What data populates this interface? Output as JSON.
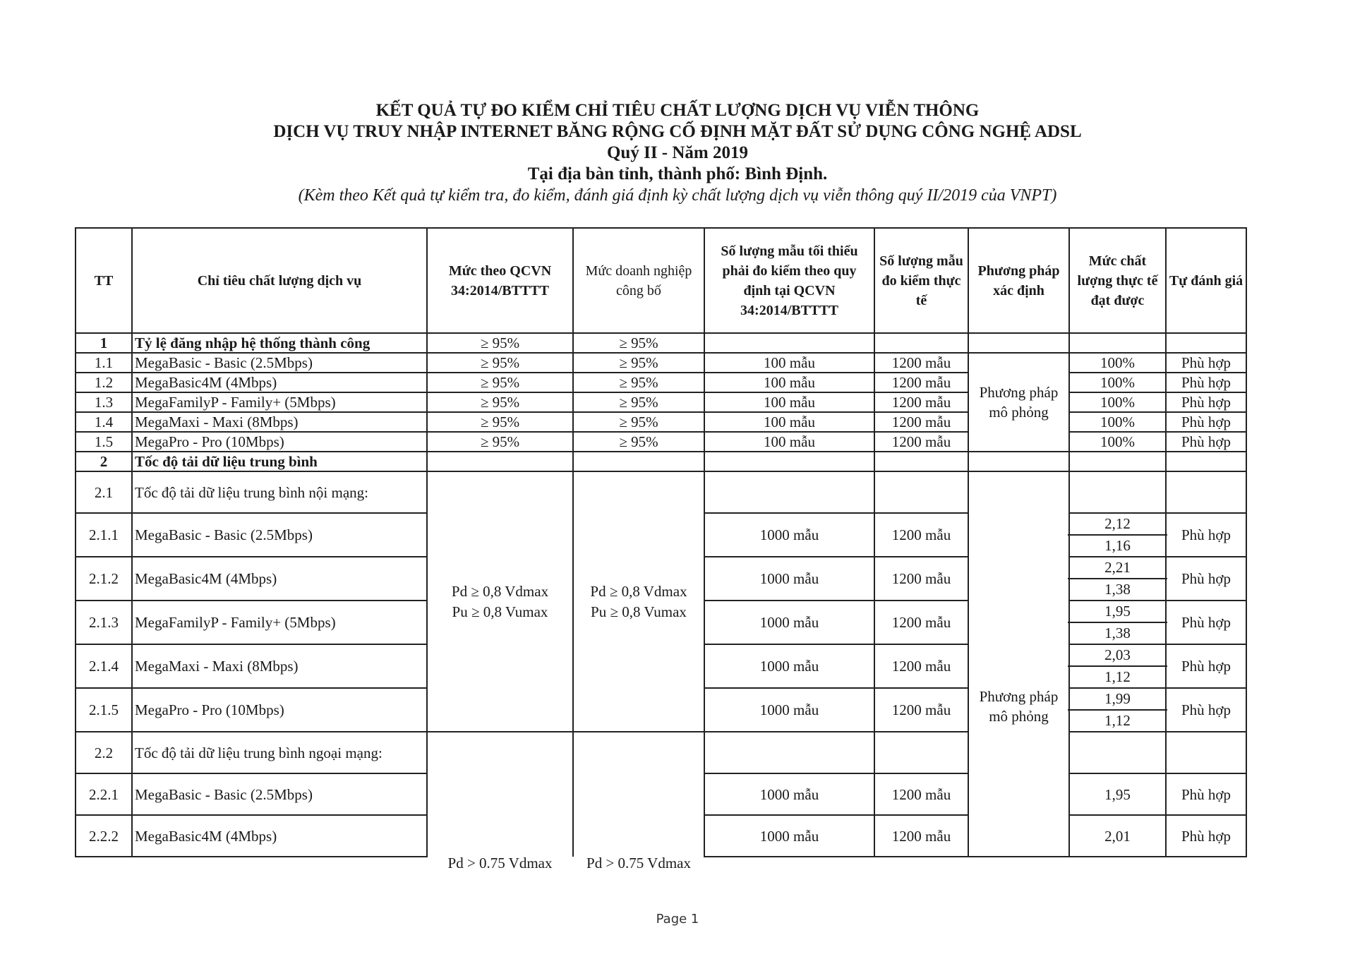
{
  "title": {
    "line1": "KẾT QUẢ TỰ ĐO KIỂM CHỈ TIÊU CHẤT LƯỢNG DỊCH VỤ VIỄN THÔNG",
    "line2": "DỊCH VỤ TRUY NHẬP INTERNET BĂNG RỘNG CỐ ĐỊNH MẶT ĐẤT SỬ DỤNG CÔNG NGHỆ ADSL",
    "period": "Quý II - Năm 2019",
    "location": "Tại địa bàn tỉnh, thành phố: Bình Định.",
    "note": "(Kèm theo Kết quả tự kiểm tra, đo kiểm, đánh giá định kỳ chất lượng dịch vụ viễn thông quý II/2019 của VNPT)"
  },
  "headers": [
    "TT",
    "Chỉ tiêu chất lượng dịch vụ",
    "Mức theo QCVN 34:2014/BTTTT",
    "Mức doanh nghiệp công bố",
    "Số lượng mẫu tối thiểu phải đo kiểm theo quy định tại QCVN 34:2014/BTTTT",
    "Số lượng mẫu đo kiểm thực tế",
    "Phương pháp xác định",
    "Mức chất lượng thực tế đạt được",
    "Tự đánh giá"
  ],
  "s1": {
    "tt": "1",
    "name": "Tỷ lệ đăng nhập hệ thống thành công",
    "qcvn": "≥ 95%",
    "dn": "≥ 95%",
    "method": "Phương pháp mô phỏng",
    "rows": [
      {
        "tt": "1.1",
        "name": "MegaBasic - Basic (2.5Mbps)",
        "qcvn": "≥ 95%",
        "dn": "≥ 95%",
        "min": "100 mẫu",
        "actual": "1200 mẫu",
        "value": "100%",
        "eval": "Phù hợp"
      },
      {
        "tt": "1.2",
        "name": "MegaBasic4M (4Mbps)",
        "qcvn": "≥ 95%",
        "dn": "≥ 95%",
        "min": "100 mẫu",
        "actual": "1200 mẫu",
        "value": "100%",
        "eval": "Phù hợp"
      },
      {
        "tt": "1.3",
        "name": "MegaFamilyP - Family+ (5Mbps)",
        "qcvn": "≥ 95%",
        "dn": "≥ 95%",
        "min": "100 mẫu",
        "actual": "1200 mẫu",
        "value": "100%",
        "eval": "Phù hợp"
      },
      {
        "tt": "1.4",
        "name": "MegaMaxi - Maxi (8Mbps)",
        "qcvn": "≥ 95%",
        "dn": "≥ 95%",
        "min": "100 mẫu",
        "actual": "1200 mẫu",
        "value": "100%",
        "eval": "Phù hợp"
      },
      {
        "tt": "1.5",
        "name": "MegaPro - Pro (10Mbps)",
        "qcvn": "≥ 95%",
        "dn": "≥ 95%",
        "min": "100 mẫu",
        "actual": "1200 mẫu",
        "value": "100%",
        "eval": "Phù hợp"
      }
    ]
  },
  "s2": {
    "tt": "2",
    "name": "Tốc độ tải dữ liệu trung bình",
    "method": "Phương pháp mô phỏng",
    "s21": {
      "tt": "2.1",
      "name": "Tốc độ tải dữ liệu trung bình nội mạng:",
      "qcvn_d": "Pd ≥ 0,8 Vdmax",
      "qcvn_u": "Pu ≥ 0,8 Vumax",
      "dn_d": "Pd ≥ 0,8 Vdmax",
      "dn_u": "Pu ≥ 0,8 Vumax",
      "rows": [
        {
          "tt": "2.1.1",
          "name": "MegaBasic - Basic (2.5Mbps)",
          "min": "1000 mẫu",
          "actual": "1200 mẫu",
          "down": "2,12",
          "up": "1,16",
          "eval": "Phù hợp"
        },
        {
          "tt": "2.1.2",
          "name": "MegaBasic4M (4Mbps)",
          "min": "1000 mẫu",
          "actual": "1200 mẫu",
          "down": "2,21",
          "up": "1,38",
          "eval": "Phù hợp"
        },
        {
          "tt": "2.1.3",
          "name": "MegaFamilyP - Family+ (5Mbps)",
          "min": "1000 mẫu",
          "actual": "1200 mẫu",
          "down": "1,95",
          "up": "1,38",
          "eval": "Phù hợp"
        },
        {
          "tt": "2.1.4",
          "name": "MegaMaxi - Maxi (8Mbps)",
          "min": "1000 mẫu",
          "actual": "1200 mẫu",
          "down": "2,03",
          "up": "1,12",
          "eval": "Phù hợp"
        },
        {
          "tt": "2.1.5",
          "name": "MegaPro - Pro (10Mbps)",
          "min": "1000 mẫu",
          "actual": "1200 mẫu",
          "down": "1,99",
          "up": "1,12",
          "eval": "Phù hợp"
        }
      ]
    },
    "s22": {
      "tt": "2.2",
      "name": "Tốc độ tải dữ liệu trung bình ngoại mạng:",
      "qcvn": "Pd > 0.75 Vdmax",
      "dn": "Pd > 0.75 Vdmax",
      "rows": [
        {
          "tt": "2.2.1",
          "name": "MegaBasic - Basic (2.5Mbps)",
          "min": "1000 mẫu",
          "actual": "1200 mẫu",
          "value": "1,95",
          "eval": "Phù hợp"
        },
        {
          "tt": "2.2.2",
          "name": "MegaBasic4M (4Mbps)",
          "min": "1000 mẫu",
          "actual": "1200 mẫu",
          "value": "2,01",
          "eval": "Phù hợp"
        }
      ]
    }
  },
  "footer": {
    "page": "Page 1"
  }
}
